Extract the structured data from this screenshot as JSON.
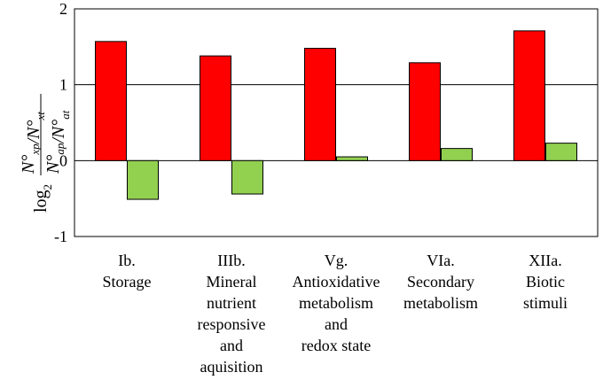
{
  "chart_data": {
    "type": "bar",
    "title": "",
    "xlabel": "",
    "ylabel": {
      "log": "log",
      "base": "2",
      "numerator": [
        {
          "text": "N°",
          "sub": "xp"
        },
        {
          "text": "/N°",
          "sub": "xt"
        }
      ],
      "denominator": [
        {
          "text": "N°",
          "sub": "ap"
        },
        {
          "text": "/N°",
          "sub": "at"
        }
      ]
    },
    "ylim": [
      -1,
      2
    ],
    "yticks": [
      "-1",
      "0",
      "1",
      "2"
    ],
    "categories": [
      [
        "Ib.",
        "Storage"
      ],
      [
        "IIIb.",
        "Mineral",
        "nutrient",
        "responsive",
        "and",
        "aquisition"
      ],
      [
        "Vg.",
        "Antioxidative",
        "metabolism",
        "and",
        "redox state"
      ],
      [
        "VIa.",
        "Secondary",
        "metabolism"
      ],
      [
        "XIIa.",
        "Biotic",
        "stimuli"
      ]
    ],
    "series": [
      {
        "name": "series-red",
        "color": "#ff0000",
        "values": [
          1.57,
          1.38,
          1.48,
          1.29,
          1.71
        ]
      },
      {
        "name": "series-green",
        "color": "#92d050",
        "values": [
          -0.51,
          -0.44,
          0.05,
          0.16,
          0.23
        ]
      }
    ],
    "grid": "horizontal"
  }
}
